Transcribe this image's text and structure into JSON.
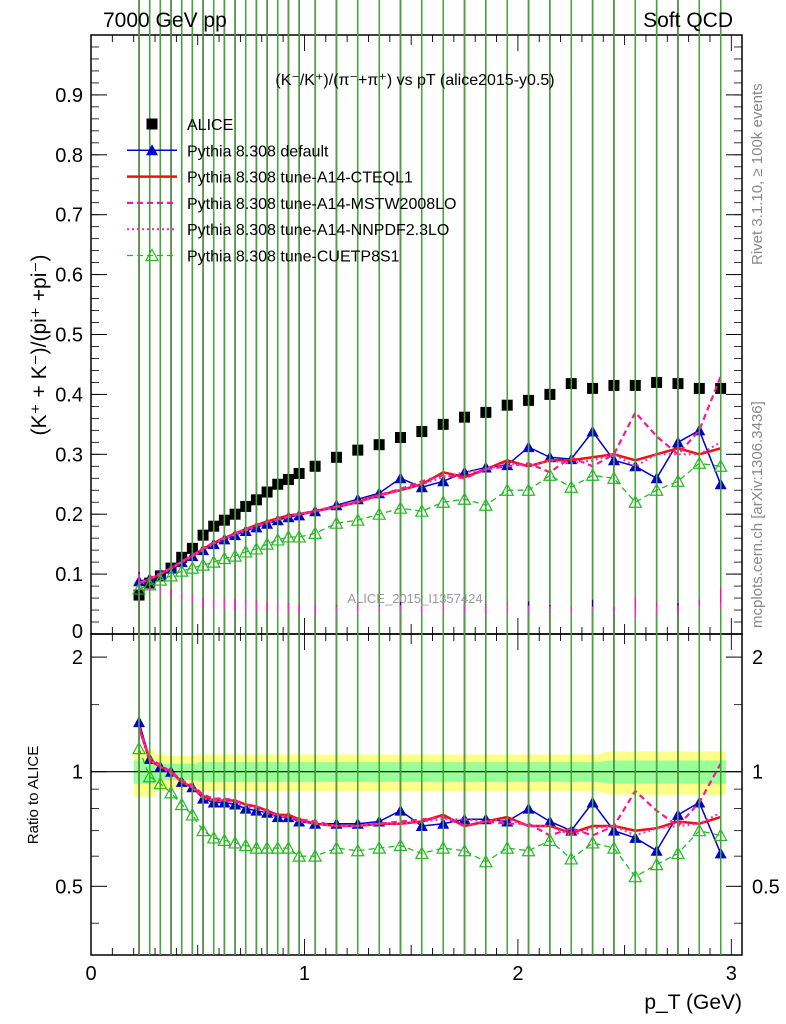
{
  "header": {
    "left": "7000 GeV pp",
    "right": "Soft QCD"
  },
  "plot_title": "(K⁻/K⁺)/(π⁻+π⁺) vs pT (alice2015-y0.5)",
  "side_labels": {
    "rivet": "Rivet 3.1.10, ≥ 100k events",
    "mcplots": "mcplots.cern.ch [arXiv:1306.3436]"
  },
  "watermark": "ALICE_2015_I1357424",
  "colors": {
    "alice": "#000000",
    "default": "#0000cc",
    "cteql1": "#ee1111",
    "mstw": "#ff1493",
    "nnpdf": "#ee33cc",
    "cuetp8s1": "#22bb22",
    "band_inner": "#99ff99",
    "band_outer": "#ffff88"
  },
  "chart_data": [
    {
      "type": "scatter",
      "panel": "main",
      "ylabel": "(K⁺ + K⁻)/(pi⁺ +pi⁻)",
      "xlim": [
        0,
        3.05
      ],
      "ylim": [
        0,
        1.0
      ],
      "yticks": [
        "0.1",
        "0.2",
        "0.3",
        "0.4",
        "0.5",
        "0.6",
        "0.7",
        "0.8",
        "0.9"
      ],
      "ytick_values": [
        0.1,
        0.2,
        0.3,
        0.4,
        0.5,
        0.6,
        0.7,
        0.8,
        0.9
      ],
      "ytick_zero": "0",
      "legend_position": "top-left",
      "x": [
        0.225,
        0.275,
        0.325,
        0.375,
        0.425,
        0.475,
        0.525,
        0.575,
        0.625,
        0.675,
        0.725,
        0.775,
        0.825,
        0.875,
        0.925,
        0.975,
        1.05,
        1.15,
        1.25,
        1.35,
        1.45,
        1.55,
        1.65,
        1.75,
        1.85,
        1.95,
        2.05,
        2.15,
        2.25,
        2.35,
        2.45,
        2.55,
        2.65,
        2.75,
        2.85,
        2.95
      ],
      "series": [
        {
          "name": "ALICE",
          "key": "alice",
          "style": "square",
          "values": [
            0.065,
            0.085,
            0.097,
            0.11,
            0.128,
            0.143,
            0.165,
            0.18,
            0.19,
            0.2,
            0.213,
            0.224,
            0.237,
            0.25,
            0.258,
            0.268,
            0.28,
            0.295,
            0.307,
            0.316,
            0.328,
            0.338,
            0.35,
            0.362,
            0.37,
            0.382,
            0.39,
            0.4,
            0.418,
            0.41,
            0.415,
            0.415,
            0.42,
            0.418,
            0.41,
            0.41
          ]
        },
        {
          "name": "Pythia 8.308 default",
          "key": "default",
          "style": "solid-tri",
          "values": [
            0.088,
            0.092,
            0.1,
            0.11,
            0.12,
            0.13,
            0.14,
            0.15,
            0.158,
            0.165,
            0.172,
            0.178,
            0.184,
            0.19,
            0.195,
            0.198,
            0.205,
            0.215,
            0.225,
            0.235,
            0.26,
            0.245,
            0.255,
            0.27,
            0.278,
            0.282,
            0.312,
            0.295,
            0.292,
            0.338,
            0.29,
            0.28,
            0.26,
            0.32,
            0.34,
            0.25
          ]
        },
        {
          "name": "Pythia 8.308 tune-A14-CTEQL1",
          "key": "cteql1",
          "style": "solid",
          "values": [
            0.085,
            0.091,
            0.1,
            0.11,
            0.12,
            0.13,
            0.142,
            0.152,
            0.16,
            0.168,
            0.175,
            0.182,
            0.188,
            0.193,
            0.198,
            0.2,
            0.205,
            0.212,
            0.22,
            0.232,
            0.24,
            0.25,
            0.27,
            0.262,
            0.275,
            0.29,
            0.28,
            0.29,
            0.29,
            0.295,
            0.3,
            0.29,
            0.3,
            0.31,
            0.3,
            0.31
          ]
        },
        {
          "name": "Pythia 8.308 tune-A14-MSTW2008LO",
          "key": "mstw",
          "style": "dashed",
          "values": [
            0.085,
            0.093,
            0.101,
            0.11,
            0.121,
            0.132,
            0.143,
            0.153,
            0.161,
            0.168,
            0.175,
            0.181,
            0.187,
            0.192,
            0.196,
            0.2,
            0.206,
            0.213,
            0.222,
            0.232,
            0.242,
            0.255,
            0.265,
            0.26,
            0.275,
            0.28,
            0.285,
            0.27,
            0.295,
            0.28,
            0.3,
            0.37,
            0.33,
            0.3,
            0.34,
            0.43
          ]
        },
        {
          "name": "Pythia 8.308 tune-A14-NNPDF2.3LO",
          "key": "nnpdf",
          "style": "dotted",
          "values": [
            0.084,
            0.092,
            0.1,
            0.109,
            0.12,
            0.13,
            0.14,
            0.151,
            0.159,
            0.166,
            0.173,
            0.179,
            0.185,
            0.19,
            0.195,
            0.199,
            0.204,
            0.212,
            0.22,
            0.23,
            0.24,
            0.25,
            0.262,
            0.27,
            0.275,
            0.285,
            0.28,
            0.29,
            0.285,
            0.29,
            0.3,
            0.28,
            0.3,
            0.3,
            0.3,
            0.32
          ]
        },
        {
          "name": "Pythia 8.308 tune-CUETP8S1",
          "key": "cuetp8s1",
          "style": "dashed-tri",
          "values": [
            0.075,
            0.082,
            0.09,
            0.097,
            0.105,
            0.11,
            0.115,
            0.12,
            0.126,
            0.13,
            0.137,
            0.142,
            0.15,
            0.157,
            0.162,
            0.162,
            0.168,
            0.185,
            0.19,
            0.2,
            0.21,
            0.205,
            0.22,
            0.225,
            0.215,
            0.24,
            0.24,
            0.265,
            0.245,
            0.265,
            0.26,
            0.22,
            0.24,
            0.255,
            0.285,
            0.28
          ]
        }
      ]
    },
    {
      "type": "line",
      "panel": "ratio",
      "xlabel": "p_T (GeV)",
      "ylabel": "Ratio to ALICE",
      "xlim": [
        0,
        3.05
      ],
      "ylim": [
        0.33,
        2.3
      ],
      "yticks": [
        "0.5",
        "1",
        "2"
      ],
      "ytick_values": [
        0.5,
        1,
        2
      ],
      "xticks": [
        "0",
        "1",
        "2",
        "3"
      ],
      "xtick_values": [
        0,
        1,
        2,
        3
      ],
      "band_inner": [
        0.93,
        0.93,
        0.95,
        0.95,
        0.95,
        0.95,
        0.94,
        0.94,
        0.94,
        0.94,
        0.94,
        0.94,
        0.94,
        0.94,
        0.94,
        0.94,
        0.94,
        0.94,
        0.94,
        0.94,
        0.94,
        0.94,
        0.94,
        0.94,
        0.94,
        0.94,
        0.94,
        0.94,
        0.94,
        0.94,
        0.93,
        0.93,
        0.93,
        0.93,
        0.93,
        0.93
      ],
      "band_outer": [
        0.86,
        0.86,
        0.89,
        0.9,
        0.9,
        0.9,
        0.89,
        0.89,
        0.89,
        0.89,
        0.89,
        0.89,
        0.89,
        0.89,
        0.89,
        0.89,
        0.89,
        0.89,
        0.89,
        0.89,
        0.89,
        0.89,
        0.89,
        0.89,
        0.89,
        0.89,
        0.89,
        0.89,
        0.89,
        0.89,
        0.87,
        0.87,
        0.87,
        0.87,
        0.87,
        0.87
      ],
      "series": [
        {
          "name": "Pythia 8.308 default",
          "key": "default",
          "style": "solid-tri",
          "values": [
            1.35,
            1.08,
            1.03,
            1.0,
            0.94,
            0.91,
            0.85,
            0.83,
            0.83,
            0.82,
            0.8,
            0.79,
            0.78,
            0.76,
            0.76,
            0.74,
            0.73,
            0.73,
            0.73,
            0.74,
            0.79,
            0.72,
            0.73,
            0.75,
            0.75,
            0.74,
            0.8,
            0.74,
            0.7,
            0.83,
            0.7,
            0.67,
            0.62,
            0.77,
            0.83,
            0.61
          ]
        },
        {
          "name": "Pythia 8.308 tune-A14-CTEQL1",
          "key": "cteql1",
          "style": "solid",
          "values": [
            1.31,
            1.07,
            1.03,
            1.0,
            0.94,
            0.91,
            0.86,
            0.84,
            0.84,
            0.84,
            0.82,
            0.81,
            0.79,
            0.77,
            0.77,
            0.75,
            0.73,
            0.72,
            0.72,
            0.73,
            0.73,
            0.74,
            0.77,
            0.72,
            0.74,
            0.76,
            0.72,
            0.72,
            0.69,
            0.72,
            0.72,
            0.7,
            0.71,
            0.74,
            0.73,
            0.76
          ]
        },
        {
          "name": "Pythia 8.308 tune-A14-MSTW2008LO",
          "key": "mstw",
          "style": "dashed",
          "values": [
            1.31,
            1.09,
            1.04,
            1.0,
            0.95,
            0.92,
            0.87,
            0.85,
            0.85,
            0.84,
            0.82,
            0.81,
            0.79,
            0.77,
            0.76,
            0.75,
            0.74,
            0.72,
            0.72,
            0.73,
            0.74,
            0.75,
            0.76,
            0.72,
            0.74,
            0.73,
            0.73,
            0.68,
            0.71,
            0.68,
            0.72,
            0.89,
            0.79,
            0.72,
            0.83,
            1.05
          ]
        },
        {
          "name": "Pythia 8.308 tune-A14-NNPDF2.3LO",
          "key": "nnpdf",
          "style": "dotted",
          "values": [
            1.29,
            1.08,
            1.03,
            0.99,
            0.94,
            0.91,
            0.85,
            0.84,
            0.84,
            0.83,
            0.81,
            0.8,
            0.78,
            0.76,
            0.76,
            0.74,
            0.73,
            0.72,
            0.72,
            0.73,
            0.73,
            0.74,
            0.75,
            0.75,
            0.74,
            0.75,
            0.72,
            0.72,
            0.68,
            0.71,
            0.72,
            0.68,
            0.71,
            0.72,
            0.73,
            0.78
          ]
        },
        {
          "name": "Pythia 8.308 tune-CUETP8S1",
          "key": "cuetp8s1",
          "style": "dashed-tri",
          "values": [
            1.15,
            0.97,
            0.93,
            0.88,
            0.82,
            0.77,
            0.7,
            0.67,
            0.66,
            0.65,
            0.64,
            0.63,
            0.63,
            0.63,
            0.63,
            0.6,
            0.6,
            0.63,
            0.62,
            0.63,
            0.64,
            0.61,
            0.63,
            0.62,
            0.58,
            0.63,
            0.62,
            0.66,
            0.59,
            0.65,
            0.63,
            0.53,
            0.57,
            0.61,
            0.7,
            0.68
          ]
        }
      ]
    }
  ]
}
